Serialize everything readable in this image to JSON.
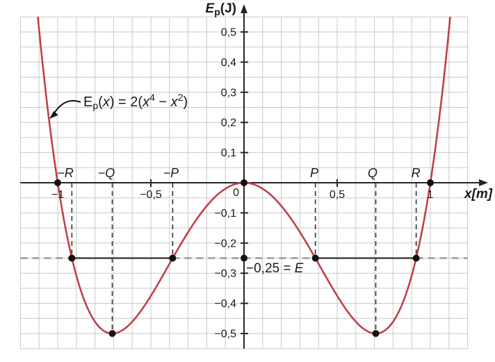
{
  "chart_data": {
    "type": "line",
    "title": "",
    "xlabel": "x[m]",
    "ylabel_parts": {
      "base": "E",
      "sub": "p",
      "unit": "(J)"
    },
    "x_range": [
      -1.2,
      1.2
    ],
    "y_range": [
      -0.55,
      0.55
    ],
    "grid": {
      "on": true,
      "x_step": 0.1,
      "y_step": 0.05
    },
    "function": {
      "expression": "E_p(x) = 2(x^4 - x^2)",
      "scale": 2,
      "exponent_high": 4,
      "exponent_low": 2,
      "sample_range": [
        -1.2,
        1.2
      ],
      "sample_step": 0.005
    },
    "x_ticks": [
      {
        "value": -1,
        "label": "−1"
      },
      {
        "value": -0.5,
        "label": "−0,5"
      },
      {
        "value": 0.5,
        "label": "0,5"
      },
      {
        "value": 1,
        "label": "1"
      }
    ],
    "y_ticks": [
      {
        "value": 0.5,
        "label": "0,5"
      },
      {
        "value": 0.4,
        "label": "0,4"
      },
      {
        "value": 0.3,
        "label": "0,3"
      },
      {
        "value": 0.2,
        "label": "0,2"
      },
      {
        "value": 0.1,
        "label": "0,1"
      },
      {
        "value": -0.1,
        "label": "−0,1"
      },
      {
        "value": -0.2,
        "label": "−0,2"
      },
      {
        "value": -0.3,
        "label": "−0,3"
      },
      {
        "value": -0.4,
        "label": "−0,4"
      },
      {
        "value": -0.5,
        "label": "−0,5"
      }
    ],
    "origin_label": "0",
    "special_points": {
      "P": 0.383,
      "Q": 0.707,
      "R": 0.924
    },
    "energy_level": {
      "value": -0.25,
      "label_prefix": "−0,25 = ",
      "label_var": "E",
      "solid_segments": [
        [
          -0.924,
          -0.383
        ],
        [
          0.383,
          0.924
        ]
      ]
    },
    "point_labels": [
      {
        "text": "−R",
        "x": -0.959
      },
      {
        "text": "−Q",
        "x": -0.739
      },
      {
        "text": "−P",
        "x": -0.392
      },
      {
        "text": "P",
        "x": 0.377
      },
      {
        "text": "Q",
        "x": 0.69
      },
      {
        "text": "R",
        "x": 0.922
      }
    ],
    "guides": [
      {
        "x": -0.924,
        "from": 0,
        "to": -0.25
      },
      {
        "x": -0.383,
        "from": 0,
        "to": -0.25
      },
      {
        "x": 0.383,
        "from": 0,
        "to": -0.25
      },
      {
        "x": 0.924,
        "from": 0,
        "to": -0.25
      },
      {
        "x": -0.707,
        "from": 0,
        "to": -0.5
      },
      {
        "x": 0.707,
        "from": 0,
        "to": -0.5
      }
    ],
    "dots": [
      [
        -1,
        0
      ],
      [
        0,
        0
      ],
      [
        1,
        0
      ],
      [
        0,
        -0.25
      ],
      [
        -0.924,
        -0.25
      ],
      [
        -0.383,
        -0.25
      ],
      [
        0.383,
        -0.25
      ],
      [
        0.924,
        -0.25
      ],
      [
        -0.707,
        -0.5
      ],
      [
        0.707,
        -0.5
      ]
    ],
    "annotation": {
      "parts": [
        {
          "t": "E"
        },
        {
          "t": "p",
          "sub": true
        },
        {
          "t": "("
        },
        {
          "t": "x",
          "italic": true
        },
        {
          "t": ") = 2("
        },
        {
          "t": "x",
          "italic": true
        },
        {
          "t": "4",
          "sup": true
        },
        {
          "t": " − "
        },
        {
          "t": "x",
          "italic": true
        },
        {
          "t": "2",
          "sup": true
        },
        {
          "t": ")"
        }
      ]
    },
    "colors": {
      "curve": "#c04148",
      "grid": "#c9c9c9",
      "axis": "#262626",
      "guide": "#3a3a3a",
      "energy_dashed": "#8f8f8f",
      "energy_solid": "#404040",
      "dot": "#111111",
      "text": "#1a1a1a"
    }
  }
}
